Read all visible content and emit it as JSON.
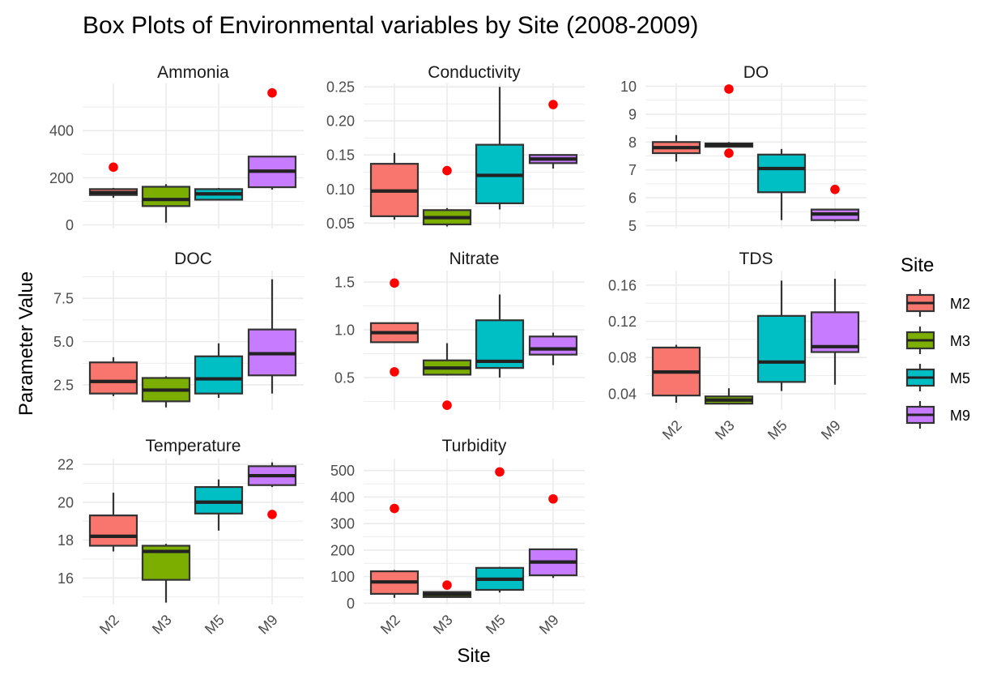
{
  "chart_data": {
    "type": "boxplot",
    "title": "Box Plots of Environmental variables by Site (2008-2009)",
    "xlabel": "Site",
    "ylabel": "Parameter Value",
    "legend": {
      "title": "Site",
      "position": "right",
      "entries": [
        {
          "name": "M2",
          "color": "#F8766D"
        },
        {
          "name": "M3",
          "color": "#7CAE00"
        },
        {
          "name": "M5",
          "color": "#00BFC4"
        },
        {
          "name": "M9",
          "color": "#C77CFF"
        }
      ]
    },
    "categories": [
      "M2",
      "M3",
      "M5",
      "M9"
    ],
    "outlier_color": "#FF0000",
    "facets": [
      {
        "name": "Ammonia",
        "ylim": [
          -15,
          600
        ],
        "y_ticks": [
          0,
          200,
          400
        ],
        "y_tick_labels": [
          "0",
          "200",
          "400"
        ],
        "minor_ticks": [
          100,
          300,
          500
        ],
        "boxes": [
          {
            "site": "M2",
            "whisker_low": 115,
            "q1": 127,
            "median": 137,
            "q3": 152,
            "whisker_high": 157,
            "outliers": [
              245
            ]
          },
          {
            "site": "M3",
            "whisker_low": 10,
            "q1": 80,
            "median": 108,
            "q3": 162,
            "whisker_high": 173,
            "outliers": []
          },
          {
            "site": "M5",
            "whisker_low": 105,
            "q1": 107,
            "median": 132,
            "q3": 152,
            "whisker_high": 157,
            "outliers": []
          },
          {
            "site": "M9",
            "whisker_low": 150,
            "q1": 160,
            "median": 228,
            "q3": 290,
            "whisker_high": 290,
            "outliers": [
              560
            ]
          }
        ]
      },
      {
        "name": "Conductivity",
        "ylim": [
          0.042,
          0.255
        ],
        "y_ticks": [
          0.05,
          0.1,
          0.15,
          0.2,
          0.25
        ],
        "y_tick_labels": [
          "0.05",
          "0.10",
          "0.15",
          "0.20",
          "0.25"
        ],
        "minor_ticks": [
          0.075,
          0.125,
          0.175,
          0.225
        ],
        "boxes": [
          {
            "site": "M2",
            "whisker_low": 0.055,
            "q1": 0.06,
            "median": 0.097,
            "q3": 0.137,
            "whisker_high": 0.153,
            "outliers": []
          },
          {
            "site": "M3",
            "whisker_low": 0.045,
            "q1": 0.048,
            "median": 0.058,
            "q3": 0.069,
            "whisker_high": 0.072,
            "outliers": [
              0.127
            ]
          },
          {
            "site": "M5",
            "whisker_low": 0.07,
            "q1": 0.079,
            "median": 0.12,
            "q3": 0.165,
            "whisker_high": 0.25,
            "outliers": []
          },
          {
            "site": "M9",
            "whisker_low": 0.13,
            "q1": 0.138,
            "median": 0.144,
            "q3": 0.15,
            "whisker_high": 0.15,
            "outliers": [
              0.224
            ]
          }
        ]
      },
      {
        "name": "DO",
        "ylim": [
          4.9,
          10.1
        ],
        "y_ticks": [
          5,
          6,
          7,
          8,
          9,
          10
        ],
        "y_tick_labels": [
          "5",
          "6",
          "7",
          "8",
          "9",
          "10"
        ],
        "minor_ticks": [
          5.5,
          6.5,
          7.5,
          8.5,
          9.5
        ],
        "boxes": [
          {
            "site": "M2",
            "whisker_low": 7.3,
            "q1": 7.6,
            "median": 7.8,
            "q3": 8.0,
            "whisker_high": 8.25,
            "outliers": []
          },
          {
            "site": "M3",
            "whisker_low": 7.8,
            "q1": 7.83,
            "median": 7.9,
            "q3": 7.95,
            "whisker_high": 8.0,
            "outliers": [
              9.9,
              7.6
            ]
          },
          {
            "site": "M5",
            "whisker_low": 5.2,
            "q1": 6.2,
            "median": 7.05,
            "q3": 7.55,
            "whisker_high": 7.75,
            "outliers": []
          },
          {
            "site": "M9",
            "whisker_low": 5.15,
            "q1": 5.2,
            "median": 5.42,
            "q3": 5.58,
            "whisker_high": 5.6,
            "outliers": [
              6.3
            ]
          }
        ]
      },
      {
        "name": "DOC",
        "ylim": [
          1.05,
          9.1
        ],
        "y_ticks": [
          2.5,
          5.0,
          7.5
        ],
        "y_tick_labels": [
          "2.5",
          "5.0",
          "7.5"
        ],
        "minor_ticks": [
          3.75,
          6.25,
          8.75
        ],
        "boxes": [
          {
            "site": "M2",
            "whisker_low": 1.85,
            "q1": 2.0,
            "median": 2.7,
            "q3": 3.8,
            "whisker_high": 4.1,
            "outliers": []
          },
          {
            "site": "M3",
            "whisker_low": 1.2,
            "q1": 1.55,
            "median": 2.2,
            "q3": 2.9,
            "whisker_high": 3.0,
            "outliers": []
          },
          {
            "site": "M5",
            "whisker_low": 1.75,
            "q1": 2.0,
            "median": 2.85,
            "q3": 4.15,
            "whisker_high": 4.9,
            "outliers": []
          },
          {
            "site": "M9",
            "whisker_low": 2.0,
            "q1": 3.05,
            "median": 4.3,
            "q3": 5.7,
            "whisker_high": 8.6,
            "outliers": []
          }
        ]
      },
      {
        "name": "Nitrate",
        "ylim": [
          0.16,
          1.62
        ],
        "y_ticks": [
          0.5,
          1.0,
          1.5
        ],
        "y_tick_labels": [
          "0.5",
          "1.0",
          "1.5"
        ],
        "minor_ticks": [
          0.25,
          0.75,
          1.25
        ],
        "boxes": [
          {
            "site": "M2",
            "whisker_low": 0.87,
            "q1": 0.87,
            "median": 0.97,
            "q3": 1.07,
            "whisker_high": 1.07,
            "outliers": [
              1.49,
              0.56
            ]
          },
          {
            "site": "M3",
            "whisker_low": 0.52,
            "q1": 0.53,
            "median": 0.6,
            "q3": 0.68,
            "whisker_high": 0.86,
            "outliers": [
              0.21
            ]
          },
          {
            "site": "M5",
            "whisker_low": 0.5,
            "q1": 0.6,
            "median": 0.67,
            "q3": 1.1,
            "whisker_high": 1.37,
            "outliers": []
          },
          {
            "site": "M9",
            "whisker_low": 0.63,
            "q1": 0.74,
            "median": 0.8,
            "q3": 0.93,
            "whisker_high": 0.97,
            "outliers": []
          }
        ]
      },
      {
        "name": "TDS",
        "ylim": [
          0.022,
          0.176
        ],
        "y_ticks": [
          0.04,
          0.08,
          0.12,
          0.16
        ],
        "y_tick_labels": [
          "0.04",
          "0.08",
          "0.12",
          "0.16"
        ],
        "minor_ticks": [
          0.06,
          0.1,
          0.14
        ],
        "boxes": [
          {
            "site": "M2",
            "whisker_low": 0.03,
            "q1": 0.038,
            "median": 0.064,
            "q3": 0.091,
            "whisker_high": 0.094,
            "outliers": []
          },
          {
            "site": "M3",
            "whisker_low": 0.028,
            "q1": 0.029,
            "median": 0.033,
            "q3": 0.037,
            "whisker_high": 0.046,
            "outliers": []
          },
          {
            "site": "M5",
            "whisker_low": 0.043,
            "q1": 0.053,
            "median": 0.075,
            "q3": 0.126,
            "whisker_high": 0.165,
            "outliers": []
          },
          {
            "site": "M9",
            "whisker_low": 0.05,
            "q1": 0.086,
            "median": 0.092,
            "q3": 0.13,
            "whisker_high": 0.167,
            "outliers": []
          }
        ]
      },
      {
        "name": "Temperature",
        "ylim": [
          14.6,
          22.3
        ],
        "y_ticks": [
          16,
          18,
          20,
          22
        ],
        "y_tick_labels": [
          "16",
          "18",
          "20",
          "22"
        ],
        "minor_ticks": [
          15,
          17,
          19,
          21
        ],
        "boxes": [
          {
            "site": "M2",
            "whisker_low": 17.4,
            "q1": 17.7,
            "median": 18.2,
            "q3": 19.3,
            "whisker_high": 20.5,
            "outliers": []
          },
          {
            "site": "M3",
            "whisker_low": 14.7,
            "q1": 15.9,
            "median": 17.4,
            "q3": 17.7,
            "whisker_high": 17.8,
            "outliers": []
          },
          {
            "site": "M5",
            "whisker_low": 18.5,
            "q1": 19.4,
            "median": 20.0,
            "q3": 20.8,
            "whisker_high": 21.2,
            "outliers": []
          },
          {
            "site": "M9",
            "whisker_low": 20.8,
            "q1": 20.9,
            "median": 21.4,
            "q3": 21.9,
            "whisker_high": 22.1,
            "outliers": [
              19.35
            ]
          }
        ]
      },
      {
        "name": "Turbidity",
        "ylim": [
          -5,
          545
        ],
        "y_ticks": [
          0,
          100,
          200,
          300,
          400,
          500
        ],
        "y_tick_labels": [
          "0",
          "100",
          "200",
          "300",
          "400",
          "500"
        ],
        "minor_ticks": [
          50,
          150,
          250,
          350,
          450
        ],
        "boxes": [
          {
            "site": "M2",
            "whisker_low": 20,
            "q1": 35,
            "median": 80,
            "q3": 120,
            "whisker_high": 125,
            "outliers": [
              357
            ]
          },
          {
            "site": "M3",
            "whisker_low": 20,
            "q1": 23,
            "median": 33,
            "q3": 42,
            "whisker_high": 44,
            "outliers": [
              68
            ]
          },
          {
            "site": "M5",
            "whisker_low": 40,
            "q1": 50,
            "median": 90,
            "q3": 133,
            "whisker_high": 137,
            "outliers": [
              495
            ]
          },
          {
            "site": "M9",
            "whisker_low": 95,
            "q1": 105,
            "median": 155,
            "q3": 203,
            "whisker_high": 205,
            "outliers": [
              393
            ]
          }
        ]
      }
    ]
  }
}
